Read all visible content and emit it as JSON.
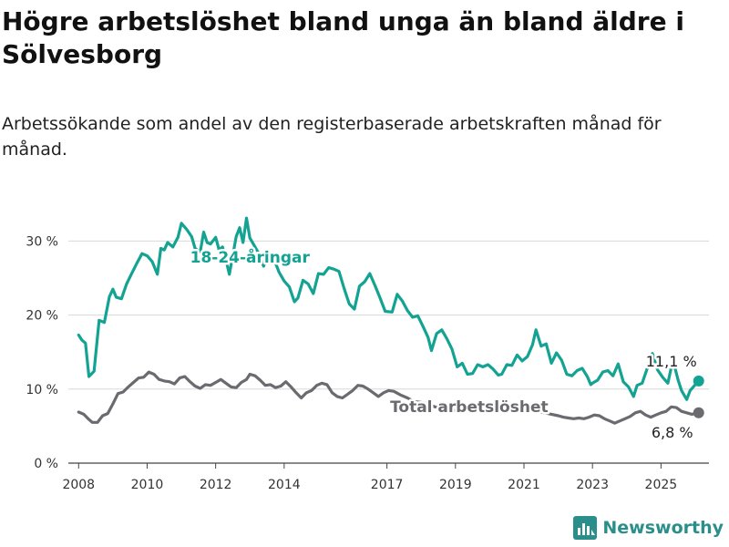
{
  "title": "Högre arbetslöshet bland unga än bland äldre i Sölvesborg",
  "subtitle": "Arbetssökande som andel av den registerbaserade arbetskraften månad för månad.",
  "brand": "Newsworthy",
  "colors": {
    "youth": "#14a393",
    "total": "#6b6a6f",
    "grid": "#d8d8d8",
    "axis": "#444444"
  },
  "chart_data": {
    "type": "line",
    "ylim": [
      0,
      33
    ],
    "y_ticks": [
      0,
      10,
      20,
      30
    ],
    "y_tick_labels": [
      "0 %",
      "10 %",
      "20 %",
      "30 %"
    ],
    "x_range": [
      2007.7,
      2026.4
    ],
    "x_ticks": [
      2008,
      2010,
      2012,
      2014,
      2017,
      2019,
      2021,
      2023,
      2025
    ],
    "x_tick_labels": [
      "2008",
      "2010",
      "2012",
      "2014",
      "2017",
      "2019",
      "2021",
      "2023",
      "2025"
    ],
    "series": [
      {
        "name": "18-24-åringar",
        "color": "#14a393",
        "end_label": "11,1 %",
        "points": [
          [
            2008.0,
            17.3
          ],
          [
            2008.1,
            16.6
          ],
          [
            2008.2,
            16.2
          ],
          [
            2008.3,
            11.7
          ],
          [
            2008.45,
            12.4
          ],
          [
            2008.6,
            19.3
          ],
          [
            2008.75,
            19.0
          ],
          [
            2008.9,
            22.5
          ],
          [
            2009.0,
            23.5
          ],
          [
            2009.1,
            22.4
          ],
          [
            2009.25,
            22.2
          ],
          [
            2009.4,
            24.2
          ],
          [
            2009.55,
            25.6
          ],
          [
            2009.7,
            27.0
          ],
          [
            2009.85,
            28.3
          ],
          [
            2010.0,
            28.0
          ],
          [
            2010.15,
            27.2
          ],
          [
            2010.3,
            25.5
          ],
          [
            2010.4,
            29.0
          ],
          [
            2010.5,
            28.8
          ],
          [
            2010.6,
            29.8
          ],
          [
            2010.75,
            29.2
          ],
          [
            2010.9,
            30.5
          ],
          [
            2011.0,
            32.4
          ],
          [
            2011.15,
            31.6
          ],
          [
            2011.3,
            30.6
          ],
          [
            2011.4,
            29.0
          ],
          [
            2011.55,
            28.5
          ],
          [
            2011.65,
            31.2
          ],
          [
            2011.75,
            29.8
          ],
          [
            2011.85,
            29.6
          ],
          [
            2012.0,
            30.5
          ],
          [
            2012.1,
            28.8
          ],
          [
            2012.2,
            29.2
          ],
          [
            2012.3,
            27.5
          ],
          [
            2012.4,
            25.5
          ],
          [
            2012.5,
            28.0
          ],
          [
            2012.6,
            30.6
          ],
          [
            2012.7,
            31.8
          ],
          [
            2012.8,
            29.8
          ],
          [
            2012.9,
            33.1
          ],
          [
            2013.0,
            30.4
          ],
          [
            2013.1,
            29.6
          ],
          [
            2013.25,
            28.4
          ],
          [
            2013.4,
            26.6
          ],
          [
            2013.55,
            28.2
          ],
          [
            2013.7,
            27.6
          ],
          [
            2013.85,
            25.8
          ],
          [
            2014.0,
            24.6
          ],
          [
            2014.15,
            23.8
          ],
          [
            2014.3,
            21.8
          ],
          [
            2014.4,
            22.3
          ],
          [
            2014.55,
            24.7
          ],
          [
            2014.7,
            24.2
          ],
          [
            2014.85,
            22.9
          ],
          [
            2015.0,
            25.6
          ],
          [
            2015.15,
            25.5
          ],
          [
            2015.3,
            26.4
          ],
          [
            2015.45,
            26.2
          ],
          [
            2015.6,
            25.9
          ],
          [
            2015.75,
            23.6
          ],
          [
            2015.9,
            21.5
          ],
          [
            2016.05,
            20.8
          ],
          [
            2016.2,
            23.9
          ],
          [
            2016.35,
            24.5
          ],
          [
            2016.5,
            25.6
          ],
          [
            2016.65,
            24.0
          ],
          [
            2016.8,
            22.3
          ],
          [
            2016.95,
            20.5
          ],
          [
            2017.15,
            20.4
          ],
          [
            2017.3,
            22.8
          ],
          [
            2017.45,
            21.9
          ],
          [
            2017.6,
            20.6
          ],
          [
            2017.75,
            19.7
          ],
          [
            2017.9,
            19.9
          ],
          [
            2018.05,
            18.5
          ],
          [
            2018.2,
            17.0
          ],
          [
            2018.3,
            15.2
          ],
          [
            2018.45,
            17.5
          ],
          [
            2018.6,
            18.0
          ],
          [
            2018.75,
            16.8
          ],
          [
            2018.9,
            15.4
          ],
          [
            2019.05,
            13.0
          ],
          [
            2019.2,
            13.5
          ],
          [
            2019.35,
            12.0
          ],
          [
            2019.5,
            12.1
          ],
          [
            2019.65,
            13.3
          ],
          [
            2019.8,
            13.0
          ],
          [
            2019.95,
            13.3
          ],
          [
            2020.1,
            12.7
          ],
          [
            2020.25,
            11.9
          ],
          [
            2020.35,
            12.0
          ],
          [
            2020.5,
            13.3
          ],
          [
            2020.65,
            13.2
          ],
          [
            2020.8,
            14.6
          ],
          [
            2020.95,
            13.8
          ],
          [
            2021.1,
            14.4
          ],
          [
            2021.25,
            16.0
          ],
          [
            2021.35,
            18.0
          ],
          [
            2021.5,
            15.8
          ],
          [
            2021.65,
            16.1
          ],
          [
            2021.8,
            13.5
          ],
          [
            2021.95,
            14.9
          ],
          [
            2022.1,
            13.9
          ],
          [
            2022.25,
            12.0
          ],
          [
            2022.4,
            11.8
          ],
          [
            2022.55,
            12.5
          ],
          [
            2022.7,
            12.8
          ],
          [
            2022.85,
            11.7
          ],
          [
            2022.95,
            10.6
          ],
          [
            2023.0,
            10.8
          ],
          [
            2023.15,
            11.2
          ],
          [
            2023.3,
            12.3
          ],
          [
            2023.45,
            12.5
          ],
          [
            2023.6,
            11.8
          ],
          [
            2023.75,
            13.4
          ],
          [
            2023.9,
            11.0
          ],
          [
            2024.05,
            10.3
          ],
          [
            2024.2,
            9.0
          ],
          [
            2024.3,
            10.5
          ],
          [
            2024.45,
            10.8
          ],
          [
            2024.6,
            12.8
          ],
          [
            2024.75,
            14.8
          ],
          [
            2024.9,
            12.6
          ],
          [
            2025.05,
            11.6
          ],
          [
            2025.2,
            10.8
          ],
          [
            2025.3,
            12.9
          ],
          [
            2025.4,
            13.0
          ],
          [
            2025.5,
            11.2
          ],
          [
            2025.6,
            9.8
          ],
          [
            2025.75,
            8.6
          ],
          [
            2025.85,
            9.8
          ],
          [
            2026.0,
            10.6
          ],
          [
            2026.1,
            11.1
          ]
        ]
      },
      {
        "name": "Total arbetslöshet",
        "color": "#6b6a6f",
        "end_label": "6,8 %",
        "points": [
          [
            2008.0,
            6.9
          ],
          [
            2008.15,
            6.6
          ],
          [
            2008.3,
            5.9
          ],
          [
            2008.4,
            5.5
          ],
          [
            2008.55,
            5.5
          ],
          [
            2008.7,
            6.4
          ],
          [
            2008.85,
            6.7
          ],
          [
            2009.0,
            8.0
          ],
          [
            2009.15,
            9.4
          ],
          [
            2009.3,
            9.6
          ],
          [
            2009.45,
            10.3
          ],
          [
            2009.6,
            10.9
          ],
          [
            2009.75,
            11.5
          ],
          [
            2009.9,
            11.6
          ],
          [
            2010.05,
            12.3
          ],
          [
            2010.2,
            12.0
          ],
          [
            2010.35,
            11.3
          ],
          [
            2010.5,
            11.1
          ],
          [
            2010.65,
            11.0
          ],
          [
            2010.8,
            10.7
          ],
          [
            2010.95,
            11.5
          ],
          [
            2011.1,
            11.7
          ],
          [
            2011.25,
            11.0
          ],
          [
            2011.4,
            10.4
          ],
          [
            2011.55,
            10.1
          ],
          [
            2011.7,
            10.6
          ],
          [
            2011.85,
            10.5
          ],
          [
            2012.0,
            10.9
          ],
          [
            2012.15,
            11.3
          ],
          [
            2012.3,
            10.8
          ],
          [
            2012.45,
            10.3
          ],
          [
            2012.6,
            10.2
          ],
          [
            2012.75,
            10.9
          ],
          [
            2012.9,
            11.3
          ],
          [
            2013.0,
            12.0
          ],
          [
            2013.15,
            11.8
          ],
          [
            2013.3,
            11.2
          ],
          [
            2013.45,
            10.5
          ],
          [
            2013.6,
            10.6
          ],
          [
            2013.75,
            10.2
          ],
          [
            2013.9,
            10.4
          ],
          [
            2014.05,
            11.0
          ],
          [
            2014.2,
            10.3
          ],
          [
            2014.35,
            9.5
          ],
          [
            2014.5,
            8.8
          ],
          [
            2014.65,
            9.5
          ],
          [
            2014.8,
            9.8
          ],
          [
            2014.95,
            10.5
          ],
          [
            2015.1,
            10.8
          ],
          [
            2015.25,
            10.6
          ],
          [
            2015.4,
            9.5
          ],
          [
            2015.55,
            9.0
          ],
          [
            2015.7,
            8.8
          ],
          [
            2015.85,
            9.3
          ],
          [
            2016.0,
            9.8
          ],
          [
            2016.15,
            10.5
          ],
          [
            2016.3,
            10.4
          ],
          [
            2016.45,
            10.0
          ],
          [
            2016.6,
            9.5
          ],
          [
            2016.75,
            9.0
          ],
          [
            2016.9,
            9.5
          ],
          [
            2017.05,
            9.8
          ],
          [
            2017.2,
            9.7
          ],
          [
            2017.4,
            9.2
          ],
          [
            2017.6,
            8.8
          ],
          [
            2017.8,
            8.3
          ],
          [
            2018.0,
            8.2
          ],
          [
            2018.2,
            8.0
          ],
          [
            2018.4,
            7.6
          ],
          [
            2018.6,
            7.5
          ],
          [
            2018.8,
            7.3
          ],
          [
            2019.0,
            7.1
          ],
          [
            2019.2,
            7.2
          ],
          [
            2019.4,
            7.0
          ],
          [
            2019.6,
            7.2
          ],
          [
            2019.8,
            7.5
          ],
          [
            2020.0,
            7.6
          ],
          [
            2020.2,
            7.8
          ],
          [
            2020.4,
            8.0
          ],
          [
            2020.6,
            7.8
          ],
          [
            2020.8,
            7.6
          ],
          [
            2021.0,
            7.4
          ],
          [
            2021.2,
            7.2
          ],
          [
            2021.4,
            7.0
          ],
          [
            2021.6,
            6.8
          ],
          [
            2021.8,
            6.6
          ],
          [
            2022.0,
            6.4
          ],
          [
            2022.15,
            6.2
          ],
          [
            2022.3,
            6.1
          ],
          [
            2022.45,
            6.0
          ],
          [
            2022.6,
            6.1
          ],
          [
            2022.75,
            6.0
          ],
          [
            2022.9,
            6.2
          ],
          [
            2023.05,
            6.5
          ],
          [
            2023.2,
            6.4
          ],
          [
            2023.35,
            6.0
          ],
          [
            2023.5,
            5.7
          ],
          [
            2023.65,
            5.4
          ],
          [
            2023.8,
            5.7
          ],
          [
            2023.95,
            6.0
          ],
          [
            2024.1,
            6.3
          ],
          [
            2024.25,
            6.8
          ],
          [
            2024.4,
            7.0
          ],
          [
            2024.55,
            6.5
          ],
          [
            2024.7,
            6.2
          ],
          [
            2024.85,
            6.5
          ],
          [
            2025.0,
            6.8
          ],
          [
            2025.15,
            7.0
          ],
          [
            2025.3,
            7.6
          ],
          [
            2025.45,
            7.5
          ],
          [
            2025.6,
            7.0
          ],
          [
            2025.75,
            6.8
          ],
          [
            2025.9,
            6.6
          ],
          [
            2026.0,
            6.7
          ],
          [
            2026.1,
            6.8
          ]
        ]
      }
    ]
  }
}
